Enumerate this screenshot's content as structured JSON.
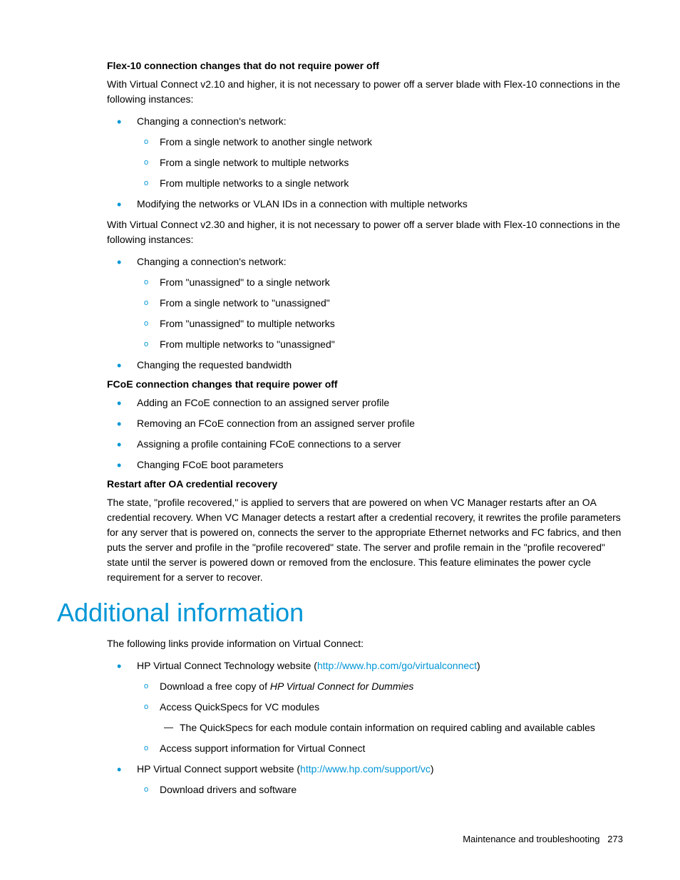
{
  "colors": {
    "accent": "#0096d6",
    "text": "#000000",
    "background": "#ffffff"
  },
  "typography": {
    "body_fontsize": 14,
    "heading_fontsize": 36,
    "footer_fontsize": 13,
    "font_family": "Arial"
  },
  "section1": {
    "heading": "Flex-10 connection changes that do not require power off",
    "intro1": "With Virtual Connect v2.10 and higher, it is not necessary to power off a server blade with Flex-10 connections in the following instances:",
    "b1_text": "Changing a connection's network:",
    "b1_sub1": "From a single network to another single network",
    "b1_sub2": "From a single network to multiple networks",
    "b1_sub3": "From multiple networks to a single network",
    "b2_text": "Modifying the networks or VLAN IDs in a connection with multiple networks",
    "intro2": "With Virtual Connect v2.30 and higher, it is not necessary to power off a server blade with Flex-10 connections in the following instances:",
    "b3_text": "Changing a connection's network:",
    "b3_sub1": "From \"unassigned\" to a single network",
    "b3_sub2": "From a single network to \"unassigned\"",
    "b3_sub3": "From \"unassigned\" to multiple networks",
    "b3_sub4": "From multiple networks to \"unassigned\"",
    "b4_text": "Changing the requested bandwidth"
  },
  "section2": {
    "heading": "FCoE connection changes that require power off",
    "b1": "Adding an FCoE connection to an assigned server profile",
    "b2": "Removing an FCoE connection from an assigned server profile",
    "b3": "Assigning a profile containing FCoE connections to a server",
    "b4": "Changing FCoE boot parameters"
  },
  "section3": {
    "heading": "Restart after OA credential recovery",
    "body": "The state, \"profile recovered,\" is applied to servers that are powered on when VC Manager restarts after an OA credential recovery. When VC Manager detects a restart after a credential recovery, it rewrites the profile parameters for any server that is powered on, connects the server to the appropriate Ethernet networks and FC fabrics, and then puts the server and profile in the \"profile recovered\" state. The server and profile remain in the \"profile recovered\" state until the server is powered down or removed from the enclosure. This feature eliminates the power cycle requirement for a server to recover."
  },
  "section4": {
    "title": "Additional information",
    "intro": "The following links provide information on Virtual Connect:",
    "b1_prefix": "HP Virtual Connect Technology website (",
    "b1_link": "http://www.hp.com/go/virtualconnect",
    "b1_suffix": ")",
    "b1_sub1_prefix": "Download a free copy of ",
    "b1_sub1_italic": "HP Virtual Connect for Dummies",
    "b1_sub2": "Access QuickSpecs for VC modules",
    "b1_sub2_sub1": "The QuickSpecs for each module contain information on required cabling and available cables",
    "b1_sub3": "Access support information for Virtual Connect",
    "b2_prefix": "HP Virtual Connect support website (",
    "b2_link": "http://www.hp.com/support/vc",
    "b2_suffix": ")",
    "b2_sub1": "Download drivers and software"
  },
  "footer": {
    "text": "Maintenance and troubleshooting",
    "page": "273"
  }
}
